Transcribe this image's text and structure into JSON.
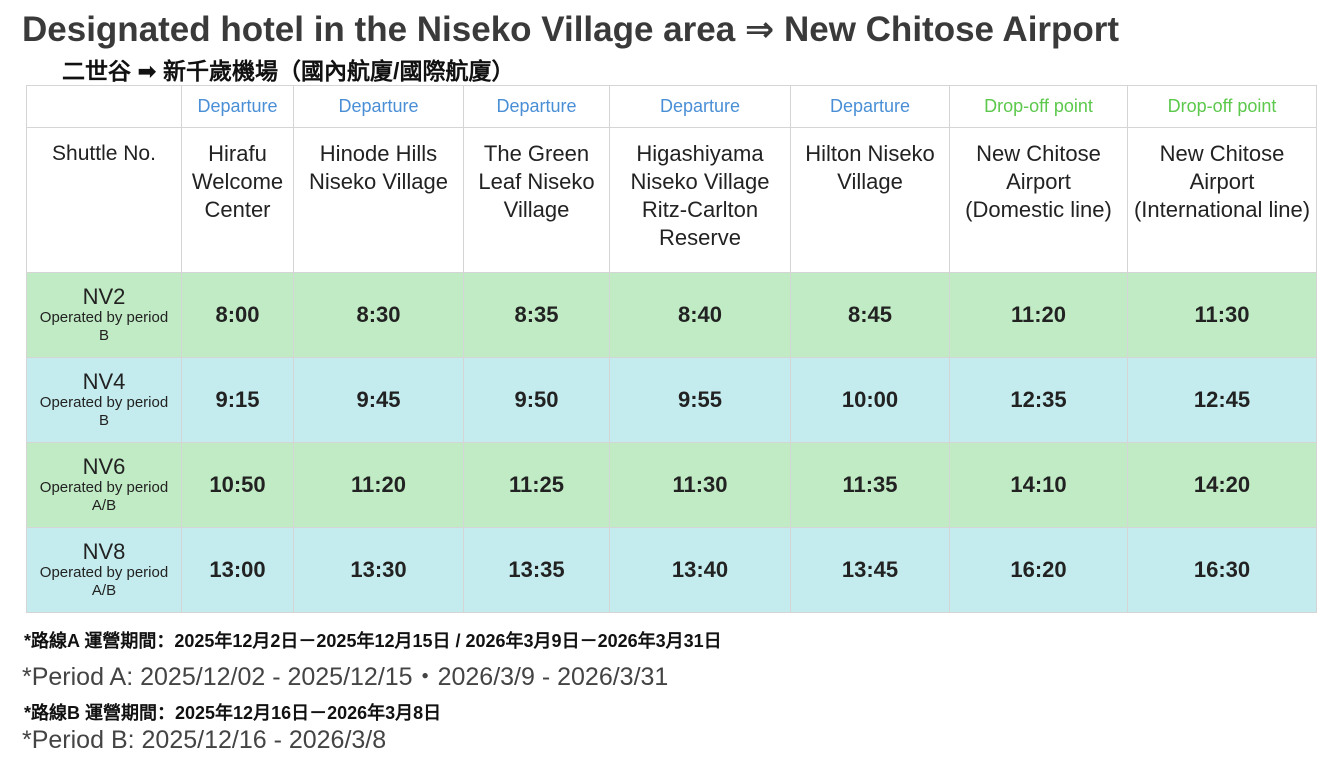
{
  "header": {
    "title": "Designated hotel in the Niseko Village area ⇒ New Chitose Airport",
    "subtitle": "二世谷 ➡ 新千歲機場（國內航廈/國際航廈）"
  },
  "table": {
    "corner": "Shuttle No.",
    "columns": [
      {
        "role": "Departure",
        "name": "Hirafu Welcome Center"
      },
      {
        "role": "Departure",
        "name": "Hinode Hills Niseko Village"
      },
      {
        "role": "Departure",
        "name": "The Green Leaf Niseko Village"
      },
      {
        "role": "Departure",
        "name": "Higashiyama Niseko Village Ritz-Carlton Reserve"
      },
      {
        "role": "Departure",
        "name": "Hilton Niseko Village"
      },
      {
        "role": "Drop-off point",
        "name": "New Chitose Airport (Domestic line)"
      },
      {
        "role": "Drop-off point",
        "name": "New Chitose Airport (International line)"
      }
    ],
    "rows": [
      {
        "shuttle": "NV2",
        "period": "Operated by period B",
        "times": [
          "8:00",
          "8:30",
          "8:35",
          "8:40",
          "8:45",
          "11:20",
          "11:30"
        ]
      },
      {
        "shuttle": "NV4",
        "period": "Operated by period B",
        "times": [
          "9:15",
          "9:45",
          "9:50",
          "9:55",
          "10:00",
          "12:35",
          "12:45"
        ]
      },
      {
        "shuttle": "NV6",
        "period": "Operated by period A/B",
        "times": [
          "10:50",
          "11:20",
          "11:25",
          "11:30",
          "11:35",
          "14:10",
          "14:20"
        ]
      },
      {
        "shuttle": "NV8",
        "period": "Operated by period A/B",
        "times": [
          "13:00",
          "13:30",
          "13:35",
          "13:40",
          "13:45",
          "16:20",
          "16:30"
        ]
      }
    ]
  },
  "notes": [
    {
      "zh": "*路線A 運營期間：2025年12月2日－2025年12月15日 / 2026年3月9日－2026年3月31日",
      "en": "*Period A: 2025/12/02 - 2025/12/15・2026/3/9 - 2026/3/31"
    },
    {
      "zh": "*路線B 運營期間：2025年12月16日－2026年3月8日",
      "en": "*Period B: 2025/12/16 - 2026/3/8"
    }
  ]
}
